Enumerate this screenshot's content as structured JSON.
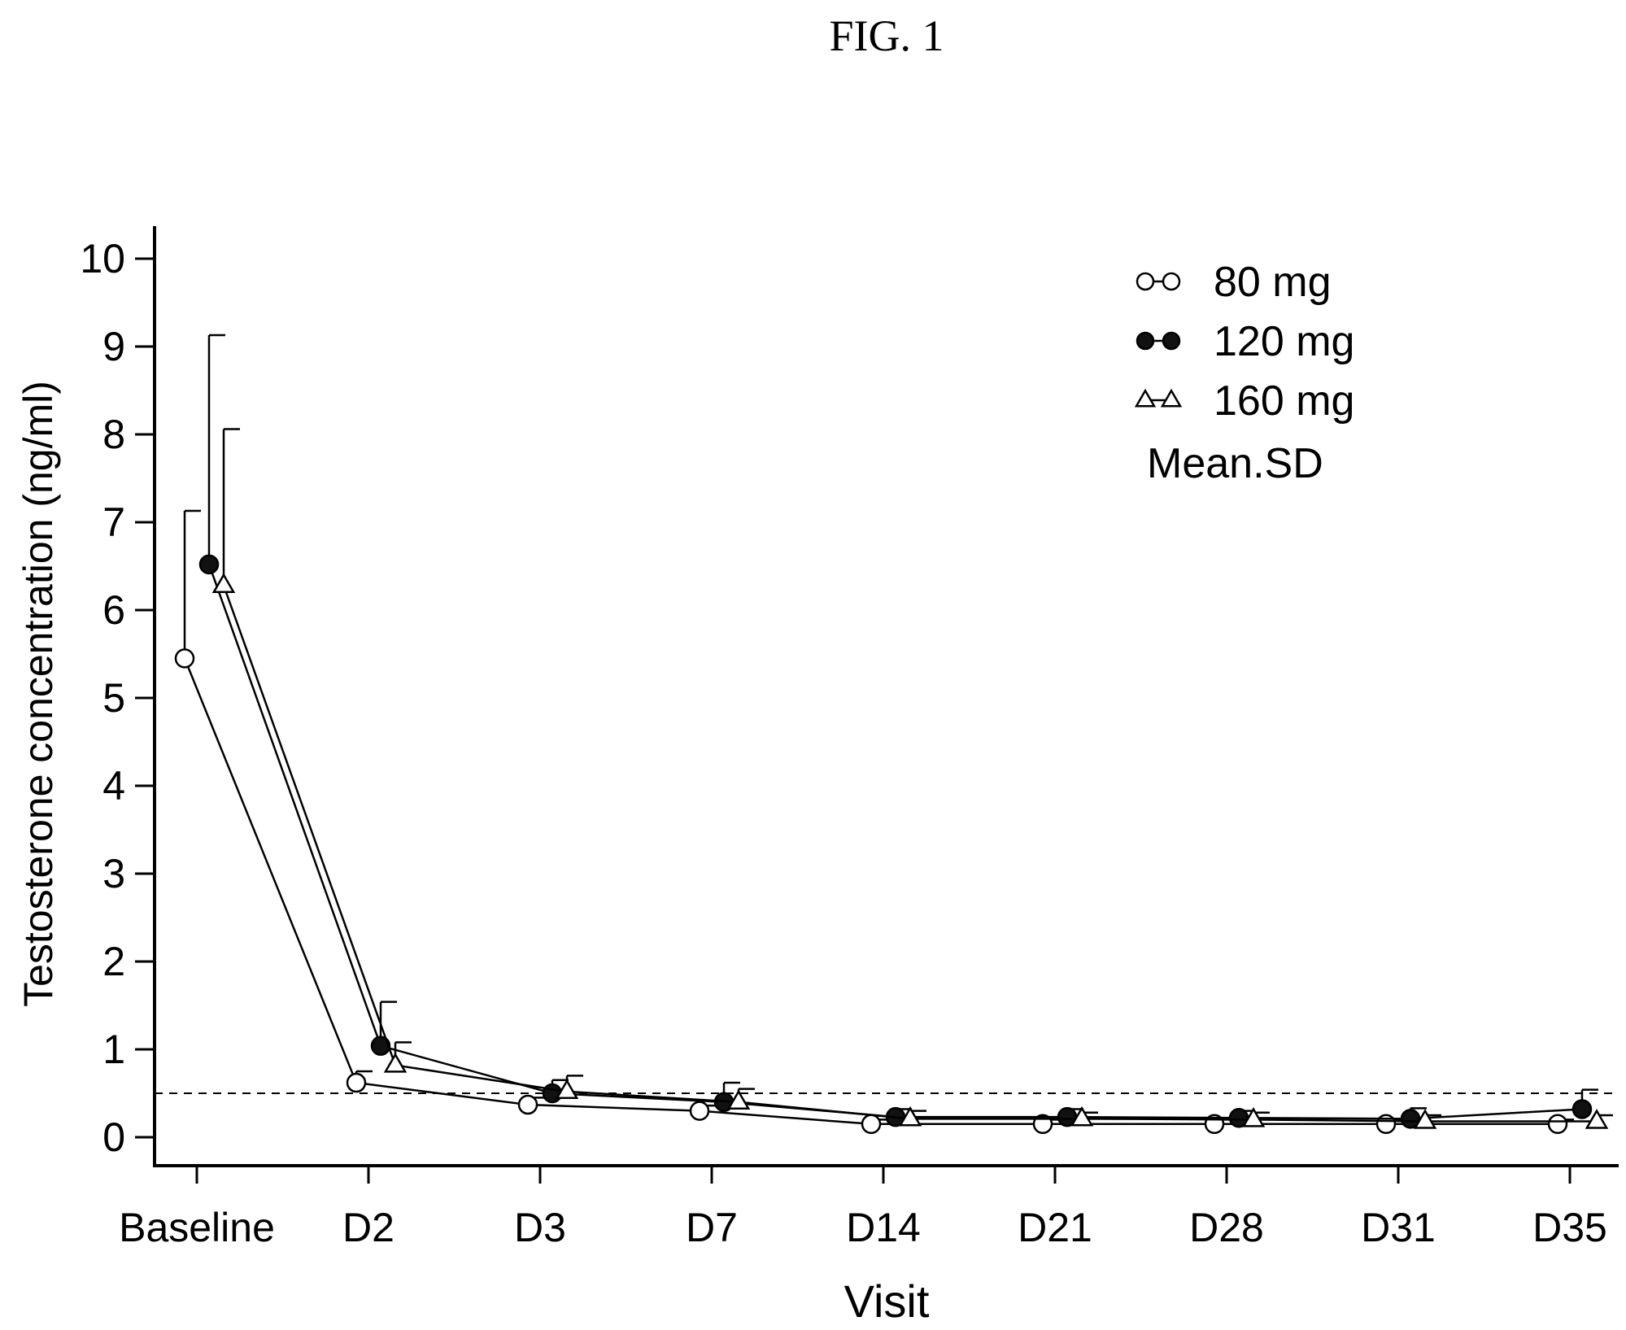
{
  "figure_label": "FIG. 1",
  "chart_data": {
    "type": "line",
    "xlabel": "Visit",
    "ylabel": "Testosterone concentration (ng/ml)",
    "categories": [
      "Baseline",
      "D2",
      "D3",
      "D7",
      "D14",
      "D21",
      "D28",
      "D31",
      "D35"
    ],
    "ylim": [
      0,
      10
    ],
    "yticks": [
      "0",
      "1",
      "2",
      "3",
      "4",
      "5",
      "6",
      "7",
      "8",
      "9",
      "10"
    ],
    "grid": false,
    "legend_position": "top-right",
    "legend_note": "Mean.SD",
    "reference_line": {
      "y": 0.5,
      "style": "dashed"
    },
    "series": [
      {
        "name": "80 mg",
        "marker": "open-circle",
        "values": [
          5.45,
          0.62,
          0.37,
          0.3,
          0.15,
          0.15,
          0.15,
          0.15,
          0.15
        ],
        "sd_upper": [
          7.13,
          0.75,
          0.45,
          0.36,
          0.2,
          0.2,
          0.2,
          0.2,
          0.2
        ]
      },
      {
        "name": "120 mg",
        "marker": "filled-circle",
        "values": [
          6.52,
          1.04,
          0.5,
          0.4,
          0.23,
          0.23,
          0.22,
          0.21,
          0.32
        ],
        "sd_upper": [
          9.13,
          1.54,
          0.65,
          0.62,
          0.32,
          0.32,
          0.3,
          0.33,
          0.54
        ]
      },
      {
        "name": "160 mg",
        "marker": "open-triangle",
        "values": [
          6.28,
          0.82,
          0.52,
          0.4,
          0.21,
          0.21,
          0.2,
          0.18,
          0.18
        ],
        "sd_upper": [
          8.06,
          1.08,
          0.7,
          0.55,
          0.3,
          0.28,
          0.28,
          0.25,
          0.25
        ]
      }
    ]
  }
}
